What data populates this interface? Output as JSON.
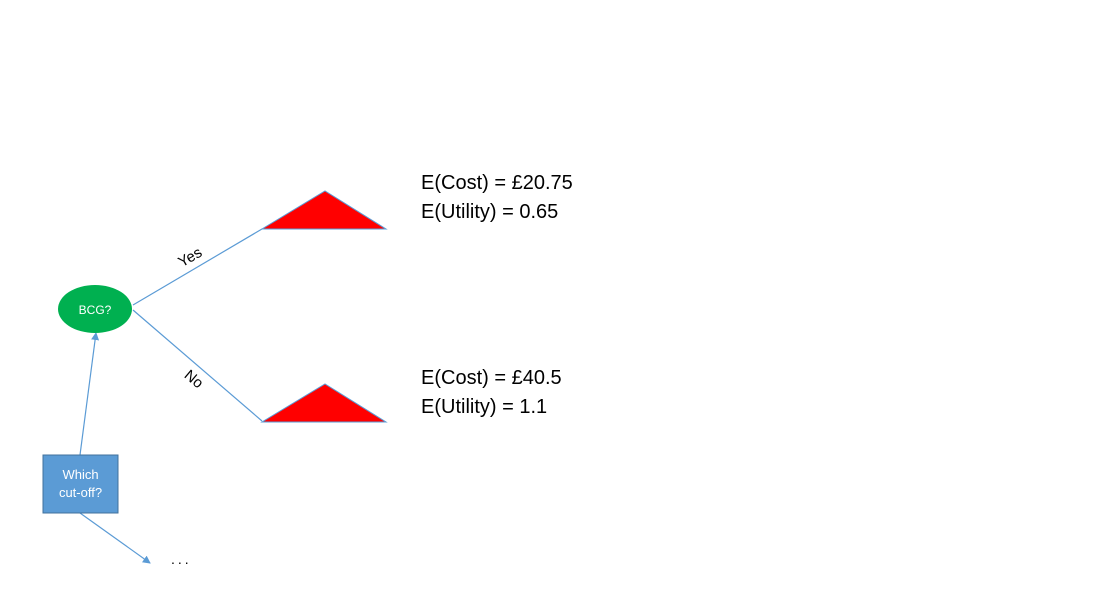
{
  "colors": {
    "decision_square": "#5b9bd5",
    "decision_square_border": "#41719c",
    "chance_node": "#00b050",
    "terminal_triangle": "#ff0000",
    "edge": "#5b9bd5",
    "background": "#ffffff"
  },
  "decision_node": {
    "line1": "Which",
    "line2": "cut-off?"
  },
  "chance_node": {
    "label": "BCG?"
  },
  "branches": {
    "yes": "Yes",
    "no": "No"
  },
  "outcomes": {
    "yes": {
      "cost": "E(Cost) = £20.75",
      "utility": "E(Utility) = 0.65"
    },
    "no": {
      "cost": "E(Cost) = £40.5",
      "utility": "E(Utility) = 1.1"
    }
  },
  "continuation": "..."
}
